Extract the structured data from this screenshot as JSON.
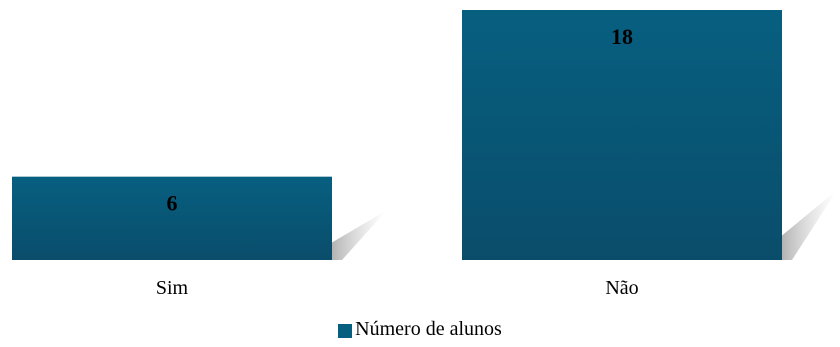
{
  "chart_data": {
    "type": "bar",
    "categories": [
      "Sim",
      "Não"
    ],
    "series": [
      {
        "name": "Número de alunos",
        "values": [
          6,
          18
        ]
      }
    ],
    "data_labels": [
      "6",
      "18"
    ],
    "ylim": [
      0,
      18
    ],
    "grid": false,
    "legend": "bottom",
    "colors": {
      "bar_top": "#075f80",
      "bar_bottom": "#0a4d6b",
      "shadow": "#c8c8c8"
    }
  }
}
